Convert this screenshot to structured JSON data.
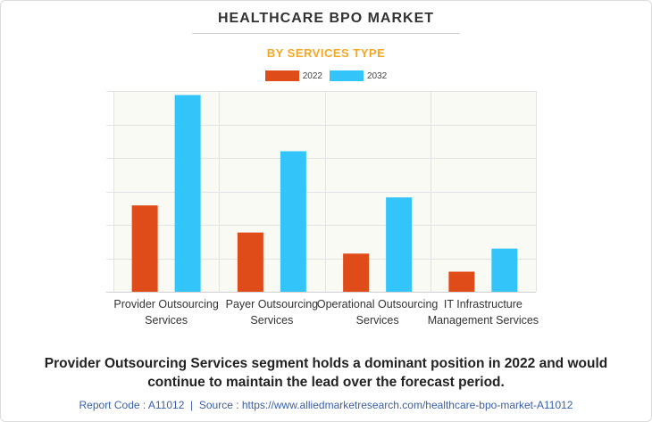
{
  "colors": {
    "series_2022": "#e04b1a",
    "series_2032": "#33c5fa",
    "subtitle": "#f5a623",
    "plot_bg": "#fafaf5",
    "grid": "#e3e3e3"
  },
  "chart_data": {
    "type": "bar",
    "title": "HEALTHCARE BPO MARKET",
    "subtitle": "BY SERVICES TYPE",
    "xlabel": "",
    "ylabel": "",
    "ylim": [
      0,
      100
    ],
    "grid": true,
    "legend_position": "top-center",
    "categories": [
      [
        "Provider Outsourcing",
        "Services"
      ],
      [
        "Payer Outsourcing",
        "Services"
      ],
      [
        "Operational Outsourcing",
        "Services"
      ],
      [
        "IT Infrastructure",
        "Management Services"
      ]
    ],
    "series": [
      {
        "name": "2022",
        "values": [
          43,
          29.5,
          19,
          10
        ]
      },
      {
        "name": "2032",
        "values": [
          98,
          70,
          47,
          21.5
        ]
      }
    ]
  },
  "summary": "Provider Outsourcing Services segment holds a dominant position in 2022 and would continue to maintain the lead over the forecast period.",
  "footer": {
    "report_code": "Report Code : A11012",
    "separator": "|",
    "source": "Source : https://www.alliedmarketresearch.com/healthcare-bpo-market-A11012"
  }
}
